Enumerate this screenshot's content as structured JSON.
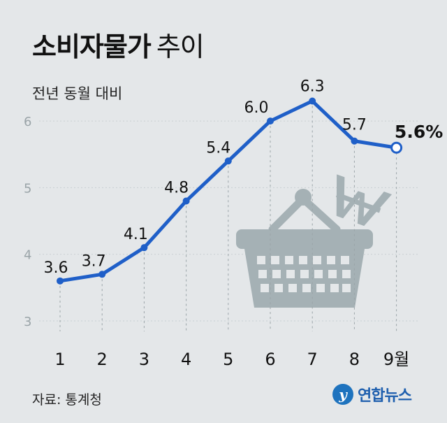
{
  "title": {
    "bold": "소비자물가",
    "light": "추이"
  },
  "subtitle": "전년 동월 대비",
  "source": "자료: 통계청",
  "logo": {
    "text": "연합뉴스"
  },
  "icons": {
    "basket": "shopping-basket-icon",
    "currency": "won-sign-icon",
    "logo": "yonhap-logo-icon"
  },
  "colors": {
    "line": "#1f5fc8",
    "background": "#e4e7e9",
    "basket": "#a5b1b5"
  },
  "chart_data": {
    "type": "line",
    "categories": [
      "1",
      "2",
      "3",
      "4",
      "5",
      "6",
      "7",
      "8",
      "9월"
    ],
    "values": [
      3.6,
      3.7,
      4.1,
      4.8,
      5.4,
      6.0,
      6.3,
      5.7,
      5.6
    ],
    "labels": [
      "3.6",
      "3.7",
      "4.1",
      "4.8",
      "5.4",
      "6.0",
      "6.3",
      "5.7",
      "5.6%"
    ],
    "yticks": [
      "3",
      "4",
      "5",
      "6"
    ],
    "ylim": [
      3,
      6.3
    ],
    "grid": true,
    "last_point_highlighted": true
  }
}
